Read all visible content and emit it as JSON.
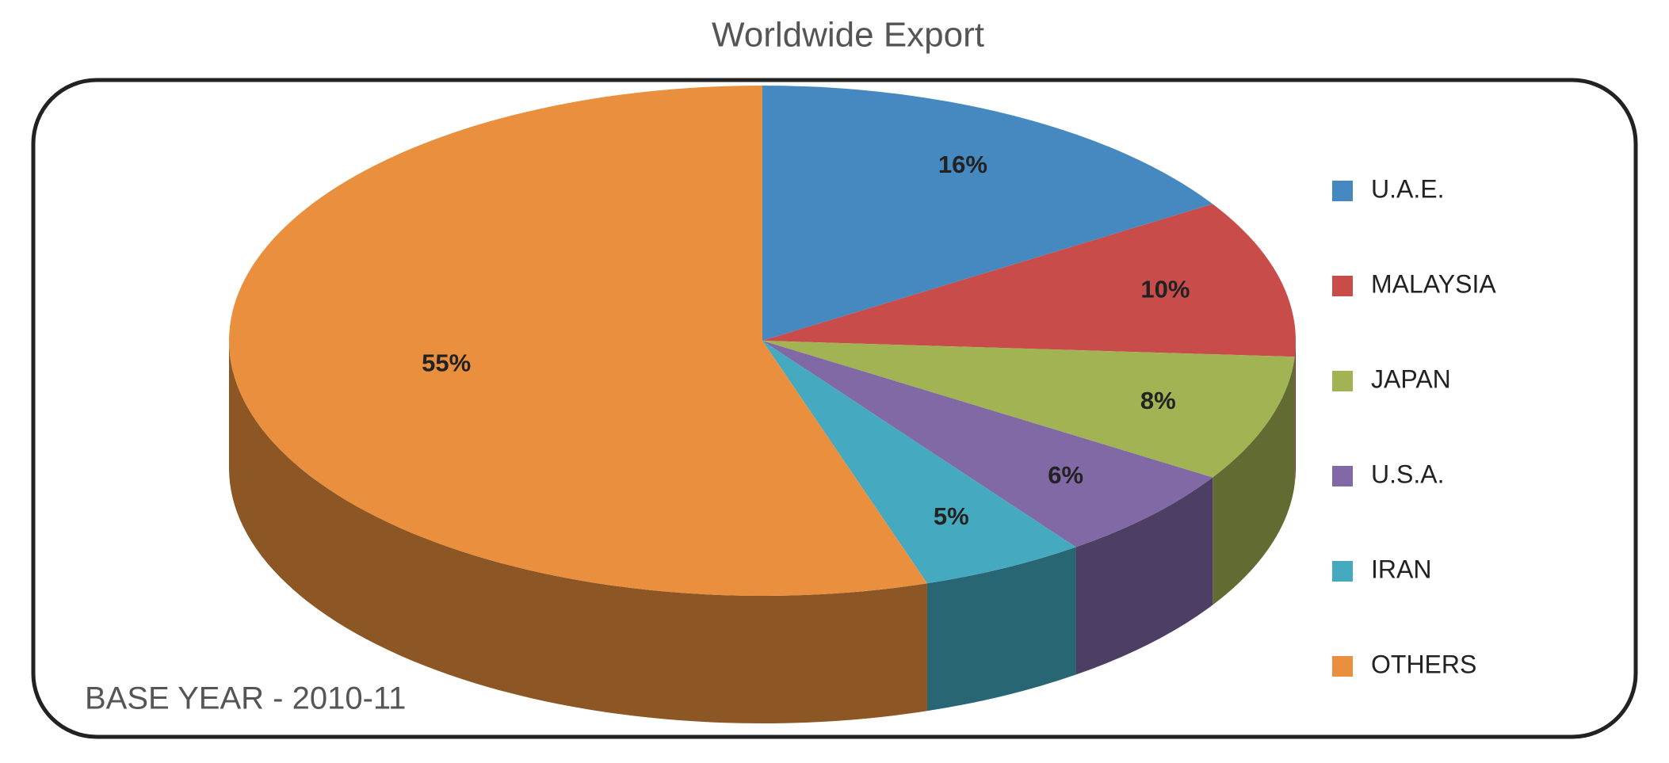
{
  "chart_data": {
    "type": "pie",
    "title": "Worldwide Export",
    "categories": [
      "U.A.E.",
      "MALAYSIA",
      "JAPAN",
      "U.S.A.",
      "IRAN",
      "OTHERS"
    ],
    "values": [
      16,
      10,
      8,
      6,
      5,
      55
    ],
    "value_labels": [
      "16%",
      "10%",
      "8%",
      "6%",
      "5%",
      "55%"
    ],
    "colors": [
      "#4589c0",
      "#c84c4a",
      "#a2b354",
      "#8069a5",
      "#45aac0",
      "#e98f3e"
    ],
    "annotation": "BASE YEAR - 2010-11"
  }
}
